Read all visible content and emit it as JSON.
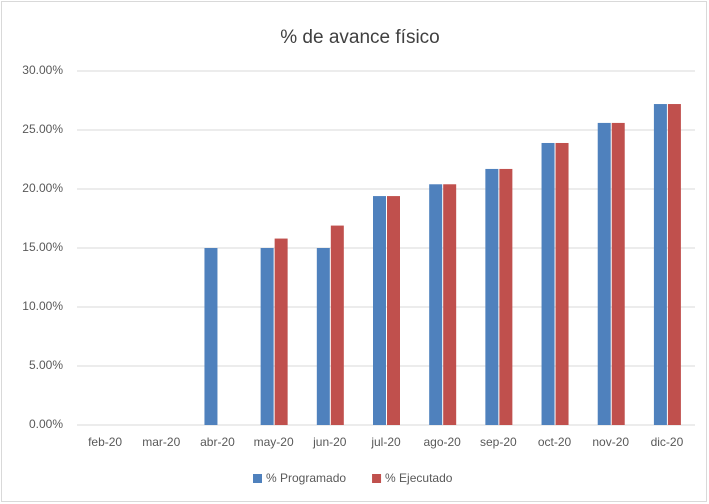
{
  "chart_data": {
    "type": "bar",
    "title": "% de avance físico",
    "categories": [
      "feb-20",
      "mar-20",
      "abr-20",
      "may-20",
      "jun-20",
      "jul-20",
      "ago-20",
      "sep-20",
      "oct-20",
      "nov-20",
      "dic-20"
    ],
    "series": [
      {
        "name": "% Programado",
        "color": "#4f81bd",
        "values": [
          0,
          0,
          15,
          15,
          15,
          19.4,
          20.4,
          21.7,
          23.9,
          25.6,
          27.2
        ]
      },
      {
        "name": "% Ejecutado",
        "color": "#c0504d",
        "values": [
          0,
          0,
          0,
          15.8,
          16.9,
          19.4,
          20.4,
          21.7,
          23.9,
          25.6,
          27.2
        ]
      }
    ],
    "ylim": [
      0,
      30
    ],
    "yticks": [
      {
        "value": 0,
        "label": "0.00%"
      },
      {
        "value": 5,
        "label": "5.00%"
      },
      {
        "value": 10,
        "label": "10.00%"
      },
      {
        "value": 15,
        "label": "15.00%"
      },
      {
        "value": 20,
        "label": "20.00%"
      },
      {
        "value": 25,
        "label": "25.00%"
      },
      {
        "value": 30,
        "label": "30.00%"
      }
    ],
    "grid": true,
    "legend": "bottom"
  }
}
